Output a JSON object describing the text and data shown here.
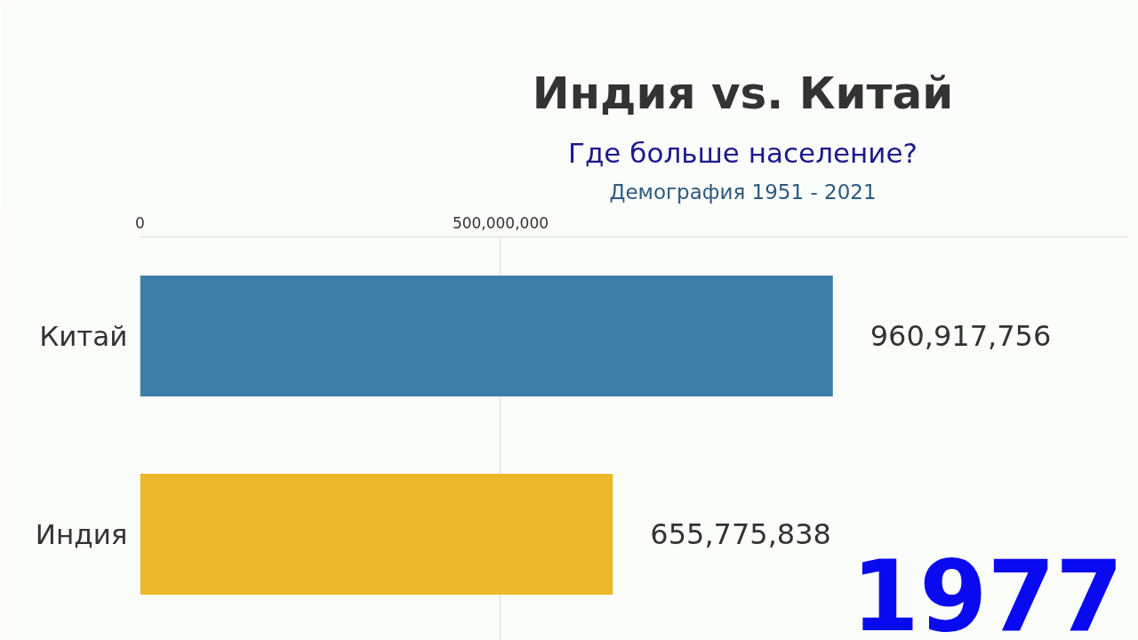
{
  "chart_data": {
    "type": "bar",
    "orientation": "horizontal",
    "title": "Индия vs. Китай",
    "subtitle": "Где больше население?",
    "annotations": [
      "Демография 1951 - 2021",
      "1977"
    ],
    "categories": [
      "Китай",
      "Индия"
    ],
    "values": [
      960917756,
      655775838
    ],
    "value_labels": [
      "960,917,756",
      "655,775,838"
    ],
    "colors": [
      "#3d7ea6",
      "#ecb82c"
    ],
    "xlim": [
      0,
      1370000000
    ],
    "xticks": [
      0,
      {
        "value": 500000000,
        "label": "500,000,000"
      }
    ],
    "grid": "x"
  }
}
